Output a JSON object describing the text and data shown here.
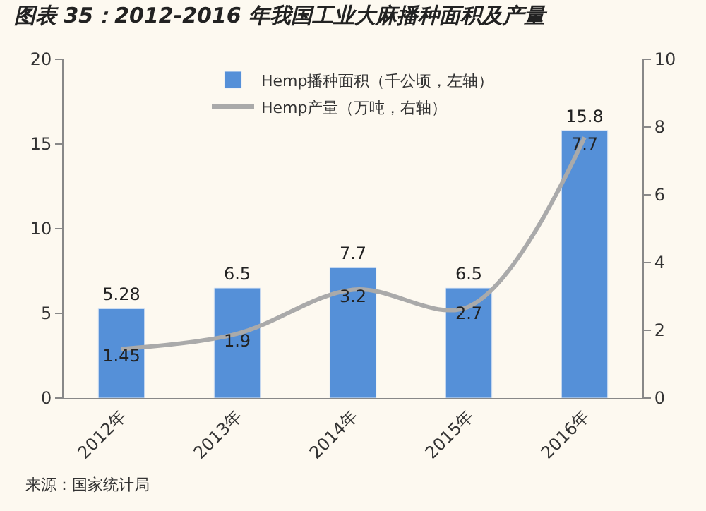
{
  "chart_data": {
    "type": "bar",
    "title": "图表 35：2012-2016 年我国工业大麻播种面积及产量",
    "categories": [
      "2012年",
      "2013年",
      "2014年",
      "2015年",
      "2016年"
    ],
    "series": [
      {
        "name": "Hemp播种面积（千公顷，左轴）",
        "color": "#5590d8",
        "values": [
          5.28,
          6.5,
          7.7,
          6.5,
          15.8
        ]
      },
      {
        "name": "Hemp产量（万吨，右轴）",
        "type": "line",
        "axis": "y2",
        "color": "#aaaaaa",
        "values": [
          1.45,
          1.9,
          3.2,
          2.7,
          7.7
        ]
      }
    ],
    "ylim": [
      0,
      20
    ],
    "yticks": [
      0,
      5,
      10,
      15,
      20
    ],
    "y2lim": [
      0,
      10
    ],
    "y2ticks": [
      0,
      2,
      4,
      6,
      8,
      10
    ],
    "data_labels": true,
    "grid": false,
    "legend": "top",
    "marker": "none",
    "annotations": [
      "来源：国家统计局"
    ]
  }
}
